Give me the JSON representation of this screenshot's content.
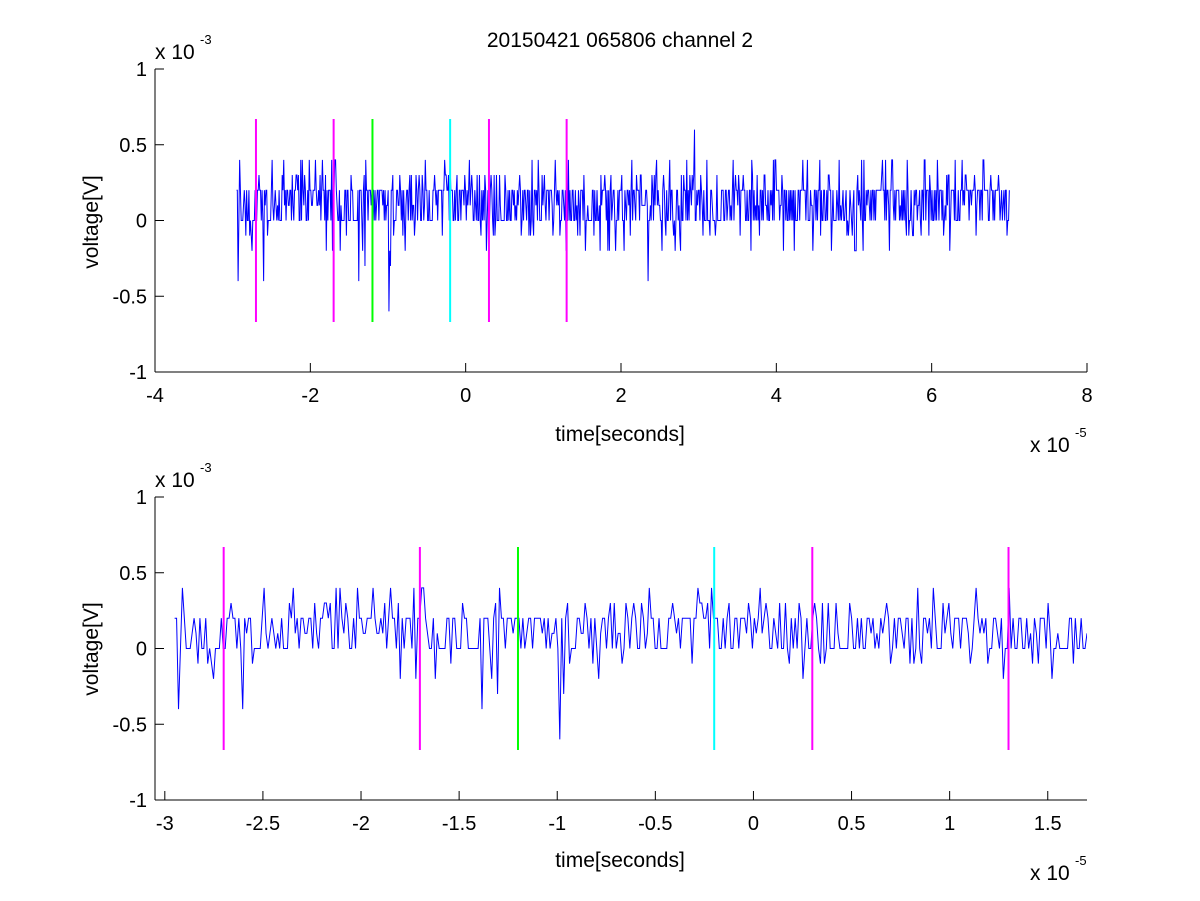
{
  "chart_data": [
    {
      "type": "line",
      "title": "20150421 065806 channel 2",
      "xlabel": "time[seconds]",
      "ylabel": "voltage[V]",
      "x_multiplier": "x 10",
      "x_multiplier_exp": "-5",
      "y_multiplier": "x 10",
      "y_multiplier_exp": "-3",
      "xlim": [
        -4e-05,
        8e-05
      ],
      "ylim": [
        -0.001,
        0.001
      ],
      "xticks": [
        -4e-05,
        -2e-05,
        0,
        2e-05,
        4e-05,
        6e-05,
        8e-05
      ],
      "xtick_labels": [
        "-4",
        "-2",
        "0",
        "2",
        "4",
        "6",
        "8"
      ],
      "yticks": [
        -0.001,
        -0.0005,
        0,
        0.0005,
        0.001
      ],
      "ytick_labels": [
        "-1",
        "-0.5",
        "0",
        "0.5",
        "1"
      ],
      "grid": false,
      "legend": "none",
      "series": [
        {
          "color": "#0000ff",
          "quantization": 0.0001,
          "x_start": -2.95e-05,
          "x_end": 7e-05,
          "y_min": -0.0006,
          "y_max": 0.0006,
          "description": "quantized noise trace centered near 0.0001 V"
        }
      ],
      "vertical_markers": [
        {
          "x": -2.7e-05,
          "color": "#ff00ff",
          "y_range": [
            -0.00067,
            0.00067
          ]
        },
        {
          "x": -1.7e-05,
          "color": "#ff00ff",
          "y_range": [
            -0.00067,
            0.00067
          ]
        },
        {
          "x": -1.2e-05,
          "color": "#00ff00",
          "y_range": [
            -0.00067,
            0.00067
          ]
        },
        {
          "x": -2e-06,
          "color": "#00ffff",
          "y_range": [
            -0.00067,
            0.00067
          ]
        },
        {
          "x": 3e-06,
          "color": "#ff00ff",
          "y_range": [
            -0.00067,
            0.00067
          ]
        },
        {
          "x": 1.3e-05,
          "color": "#ff00ff",
          "y_range": [
            -0.00067,
            0.00067
          ]
        }
      ]
    },
    {
      "type": "line",
      "title": "",
      "xlabel": "time[seconds]",
      "ylabel": "voltage[V]",
      "x_multiplier": "x 10",
      "x_multiplier_exp": "-5",
      "y_multiplier": "x 10",
      "y_multiplier_exp": "-3",
      "xlim": [
        -3.05e-05,
        1.7e-05
      ],
      "ylim": [
        -0.001,
        0.001
      ],
      "xticks": [
        -3e-05,
        -2.5e-05,
        -2e-05,
        -1.5e-05,
        -1e-05,
        -5e-06,
        0,
        5e-06,
        1e-05,
        1.5e-05
      ],
      "xtick_labels": [
        "-3",
        "-2.5",
        "-2",
        "-1.5",
        "-1",
        "-0.5",
        "0",
        "0.5",
        "1",
        "1.5"
      ],
      "yticks": [
        -0.001,
        -0.0005,
        0,
        0.0005,
        0.001
      ],
      "ytick_labels": [
        "-1",
        "-0.5",
        "0",
        "0.5",
        "1"
      ],
      "grid": false,
      "legend": "none",
      "series": [
        {
          "color": "#0000ff",
          "quantization": 0.0001,
          "x_start": -2.95e-05,
          "x_end": 1.7e-05,
          "y_min": -0.0006,
          "y_max": 0.0004,
          "description": "zoomed view of the same quantized noise trace"
        }
      ],
      "vertical_markers": [
        {
          "x": -2.7e-05,
          "color": "#ff00ff",
          "y_range": [
            -0.00067,
            0.00067
          ]
        },
        {
          "x": -1.7e-05,
          "color": "#ff00ff",
          "y_range": [
            -0.00067,
            0.00067
          ]
        },
        {
          "x": -1.2e-05,
          "color": "#00ff00",
          "y_range": [
            -0.00067,
            0.00067
          ]
        },
        {
          "x": -2e-06,
          "color": "#00ffff",
          "y_range": [
            -0.00067,
            0.00067
          ]
        },
        {
          "x": 3e-06,
          "color": "#ff00ff",
          "y_range": [
            -0.00067,
            0.00067
          ]
        },
        {
          "x": 1.3e-05,
          "color": "#ff00ff",
          "y_range": [
            -0.00067,
            0.00067
          ]
        }
      ]
    }
  ]
}
